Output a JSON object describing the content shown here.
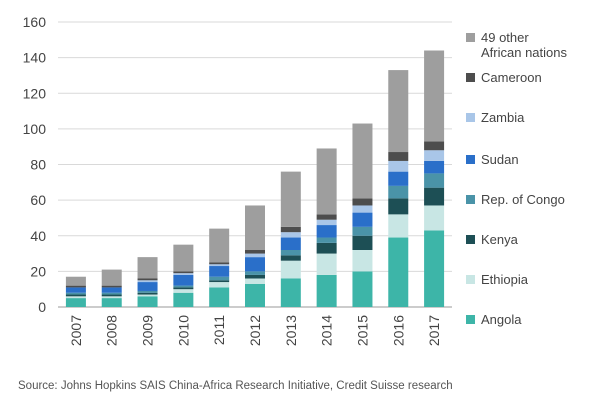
{
  "chart_data": {
    "type": "bar",
    "stacked": true,
    "categories": [
      "2007",
      "2008",
      "2009",
      "2010",
      "2011",
      "2012",
      "2013",
      "2014",
      "2015",
      "2016",
      "2017"
    ],
    "ylim": [
      0,
      160
    ],
    "yticks": [
      0,
      20,
      40,
      60,
      80,
      100,
      120,
      140,
      160
    ],
    "grid": true,
    "legend_position": "right",
    "series": [
      {
        "name": "Angola",
        "color": "#3db5a8",
        "values": [
          5,
          5,
          6,
          8,
          11,
          13,
          16,
          18,
          20,
          39,
          43
        ]
      },
      {
        "name": "Ethiopia",
        "color": "#c8e6e4",
        "values": [
          1,
          1,
          1,
          2,
          3,
          3,
          10,
          12,
          12,
          13,
          14
        ]
      },
      {
        "name": "Kenya",
        "color": "#1d4f55",
        "values": [
          1,
          1,
          1,
          1,
          1,
          2,
          3,
          6,
          8,
          9,
          10
        ]
      },
      {
        "name": "Rep. of Congo",
        "color": "#4a93a8",
        "values": [
          1,
          1,
          1,
          1,
          2,
          2,
          3,
          3,
          5,
          7,
          8
        ]
      },
      {
        "name": "Sudan",
        "color": "#2a6fc9",
        "values": [
          3,
          3,
          5,
          6,
          6,
          8,
          7,
          7,
          8,
          8,
          7
        ]
      },
      {
        "name": "Zambia",
        "color": "#a9c6e8",
        "values": [
          0,
          0,
          1,
          1,
          1,
          2,
          3,
          3,
          4,
          6,
          6
        ]
      },
      {
        "name": "Cameroon",
        "color": "#4d4d4d",
        "values": [
          1,
          1,
          1,
          1,
          1,
          2,
          3,
          3,
          4,
          5,
          5
        ]
      },
      {
        "name": "49 other\nAfrican nations",
        "color": "#9e9e9e",
        "values": [
          5,
          9,
          12,
          15,
          19,
          25,
          31,
          37,
          42,
          46,
          51
        ]
      }
    ]
  },
  "source_text": "Source: Johns Hopkins SAIS China-Africa Research Initiative, Credit Suisse research"
}
